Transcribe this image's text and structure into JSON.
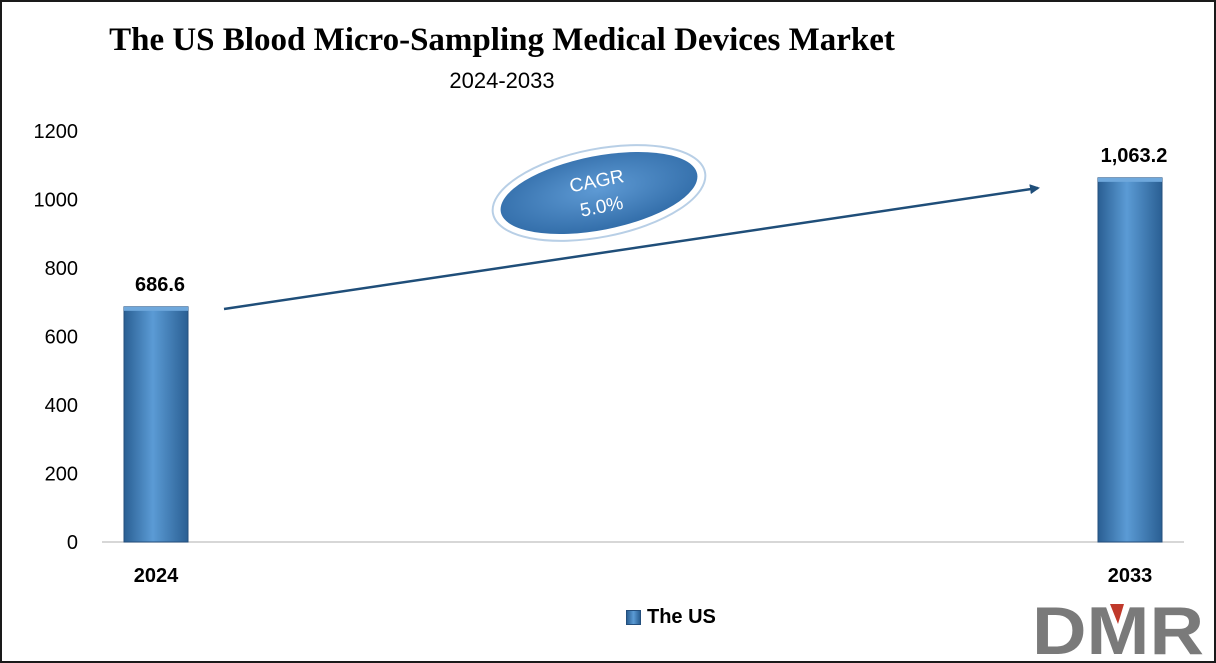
{
  "chart_data": {
    "type": "bar",
    "title": "The US Blood Micro-Sampling Medical Devices Market",
    "subtitle": "2024-2033",
    "categories": [
      "2024",
      "2033"
    ],
    "series": [
      {
        "name": "The US",
        "values": [
          686.6,
          1063.2
        ]
      }
    ],
    "data_labels": [
      "686.6",
      "1,063.2"
    ],
    "ylim": [
      0,
      1200
    ],
    "yticks": [
      0,
      200,
      400,
      600,
      800,
      1000,
      1200
    ],
    "grid": false,
    "legend_position": "bottom",
    "annotation": {
      "label": "CAGR",
      "value": "5.0%"
    }
  },
  "colors": {
    "bar": "#4a86c5",
    "bar_dark": "#2a5f93",
    "arrow": "#1f4e79",
    "ellipse": "#3f7dbd",
    "logo_gray": "#777777",
    "logo_red": "#c0392b"
  },
  "logo": {
    "text": "DMR"
  }
}
